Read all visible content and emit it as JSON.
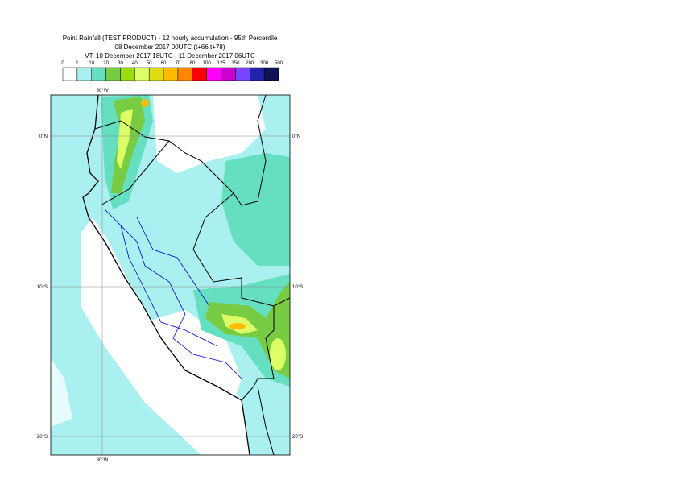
{
  "header": {
    "title": "Point Rainfall (TEST PRODUCT) - 12 hourly accumulation - 95th Percentile",
    "base_time": "08 December 2017 00UTC (t+66,t+78)",
    "valid_time": "VT: 10 December 2017 18UTC - 11 December 2017 06UTC"
  },
  "legend": {
    "levels": [
      0,
      1,
      10,
      20,
      30,
      40,
      50,
      60,
      70,
      80,
      100,
      125,
      150,
      200,
      300,
      500
    ],
    "colors": [
      "#ffffff",
      "#aaf0f0",
      "#66dfc0",
      "#77cc44",
      "#99dd11",
      "#ddff66",
      "#dddd11",
      "#ffbb00",
      "#ff8800",
      "#ff0000",
      "#ff00ff",
      "#cc00cc",
      "#7744ff",
      "#2222aa",
      "#111155"
    ]
  },
  "map": {
    "lon_top": "80°W",
    "lon_bottom": "80°W",
    "lat_labels": [
      "0°N",
      "10°S",
      "20°S"
    ]
  }
}
